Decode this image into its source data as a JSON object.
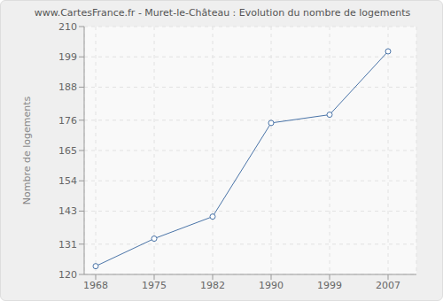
{
  "chart_data": {
    "type": "line",
    "title": "www.CartesFrance.fr - Muret-le-Château : Evolution du nombre de logements",
    "y_label": "Nombre de logements",
    "categories": [
      "1968",
      "1975",
      "1982",
      "1990",
      "1999",
      "2007"
    ],
    "values": [
      123,
      133,
      141,
      175,
      178,
      201
    ],
    "color": "#4a74a8",
    "marker": "circle",
    "ylim": [
      120,
      210
    ],
    "yticks": [
      120,
      131,
      143,
      154,
      165,
      176,
      188,
      199,
      210
    ],
    "grid": true
  }
}
